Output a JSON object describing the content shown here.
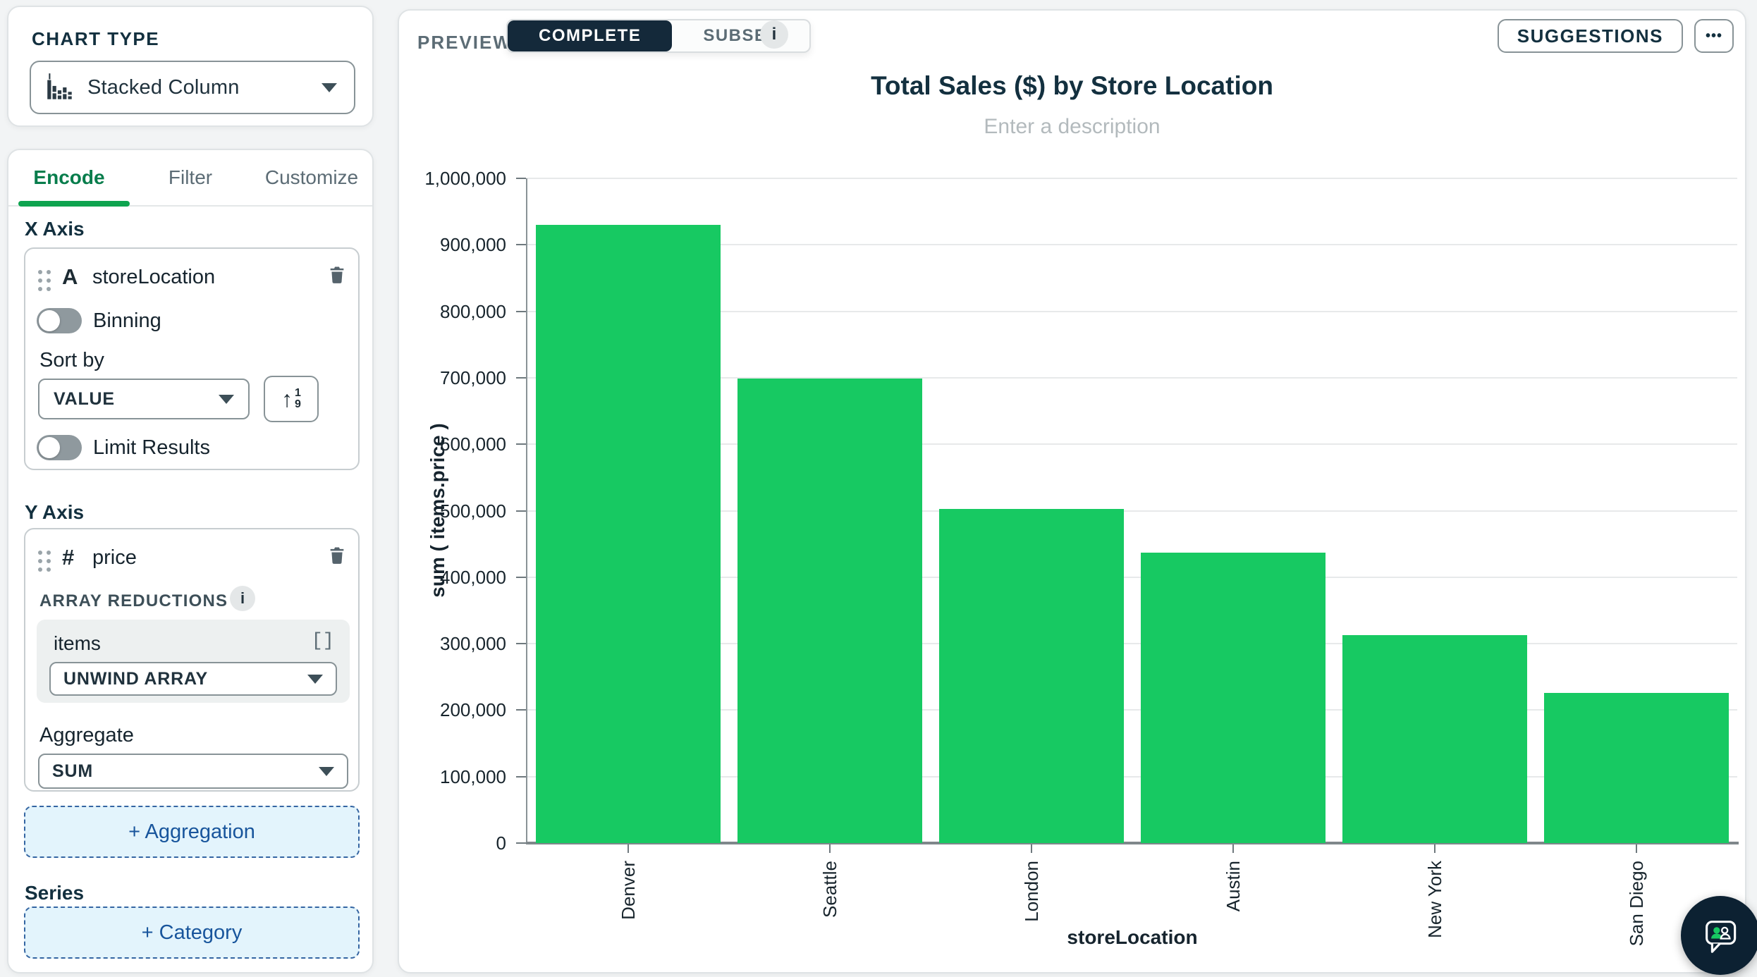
{
  "sidebar": {
    "chart_type": {
      "label": "CHART TYPE",
      "value": "Stacked Column"
    },
    "tabs": [
      {
        "label": "Encode",
        "active": true
      },
      {
        "label": "Filter",
        "active": false
      },
      {
        "label": "Customize",
        "active": false
      }
    ],
    "x_axis": {
      "heading": "X Axis",
      "field": "storeLocation",
      "field_type": "A",
      "binning_label": "Binning",
      "binning_on": false,
      "sort_by_label": "Sort by",
      "sort_by_value": "VALUE",
      "limit_label": "Limit Results",
      "limit_on": false
    },
    "y_axis": {
      "heading": "Y Axis",
      "field": "price",
      "field_type": "#",
      "array_reductions_label": "ARRAY REDUCTIONS",
      "array_field": "items",
      "array_reduction_value": "UNWIND ARRAY",
      "aggregate_label": "Aggregate",
      "aggregate_value": "SUM"
    },
    "add_aggregation_label": "+ Aggregation",
    "series_heading": "Series",
    "add_category_label": "+ Category"
  },
  "toolbar": {
    "preview_label": "PREVIEW",
    "segments": [
      {
        "label": "COMPLETE",
        "active": true
      },
      {
        "label": "SUBSET",
        "active": false
      }
    ],
    "suggestions_label": "SUGGESTIONS",
    "more_label": "•••"
  },
  "chart": {
    "title": "Total Sales ($) by Store Location",
    "description_placeholder": "Enter a description"
  },
  "chart_data": {
    "type": "bar",
    "title": "Total Sales ($) by Store Location",
    "categories": [
      "Denver",
      "Seattle",
      "London",
      "Austin",
      "New York",
      "San Diego"
    ],
    "values": [
      930000,
      699000,
      503000,
      437000,
      313000,
      226000
    ],
    "xlabel": "storeLocation",
    "ylabel": "sum ( items.price )",
    "ylim": [
      0,
      1000000
    ],
    "ytick_step": 100000,
    "bar_color": "#17c962",
    "grid": true,
    "legend": false
  },
  "icons": {
    "info_glyph": "i",
    "sort_arrow": "↑",
    "sort_top": "1",
    "sort_bottom": "9",
    "brackets": "[]"
  },
  "colors": {
    "bg": "#f2f4f5",
    "navy": "#13303f",
    "bar_green": "#17c962",
    "tab_green": "#087d4c",
    "tab_underline": "#0ea44f",
    "gray_text": "#5c6c75",
    "border_gray": "#889397",
    "seg_dark": "#14293a",
    "blue_text": "#18559c",
    "blue_bg": "#e3f4fc",
    "blue_border": "#3465a2",
    "fab_bg": "#0c2132"
  }
}
